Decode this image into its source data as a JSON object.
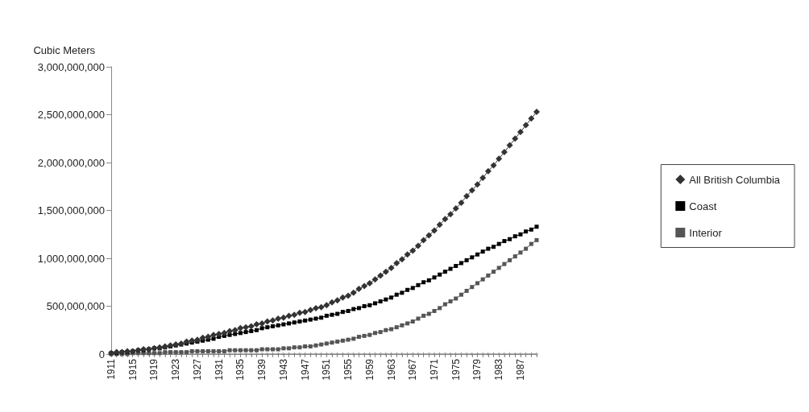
{
  "chart_data": {
    "type": "line",
    "ylabel": "Cubic Meters",
    "categories": [
      "1911",
      null,
      null,
      null,
      "1915",
      null,
      null,
      null,
      "1919",
      null,
      null,
      null,
      "1923",
      null,
      null,
      null,
      "1927",
      null,
      null,
      null,
      "1931",
      null,
      null,
      null,
      "1935",
      null,
      null,
      null,
      "1939",
      null,
      null,
      null,
      "1943",
      null,
      null,
      null,
      "1947",
      null,
      null,
      null,
      "1951",
      null,
      null,
      null,
      "1955",
      null,
      null,
      null,
      "1959",
      null,
      null,
      null,
      "1963",
      null,
      null,
      null,
      "1967",
      null,
      null,
      null,
      "1971",
      null,
      null,
      null,
      "1975",
      null,
      null,
      null,
      "1979",
      null,
      null,
      null,
      "1983",
      null,
      null,
      null,
      "1987",
      null,
      null,
      null
    ],
    "series": [
      {
        "name": "All British Columbia",
        "color": "#333333",
        "marker": "diamond",
        "values": [
          10000000.0,
          20000000.0,
          20000000.0,
          30000000.0,
          30000000.0,
          40000000.0,
          50000000.0,
          50000000.0,
          60000000.0,
          70000000.0,
          80000000.0,
          90000000.0,
          100000000.0,
          110000000.0,
          130000000.0,
          140000000.0,
          150000000.0,
          170000000.0,
          180000000.0,
          200000000.0,
          210000000.0,
          220000000.0,
          240000000.0,
          250000000.0,
          270000000.0,
          280000000.0,
          290000000.0,
          310000000.0,
          320000000.0,
          340000000.0,
          350000000.0,
          370000000.0,
          380000000.0,
          400000000.0,
          410000000.0,
          430000000.0,
          440000000.0,
          460000000.0,
          480000000.0,
          490000000.0,
          510000000.0,
          540000000.0,
          560000000.0,
          590000000.0,
          610000000.0,
          640000000.0,
          680000000.0,
          710000000.0,
          740000000.0,
          780000000.0,
          820000000.0,
          860000000.0,
          900000000.0,
          950000000.0,
          990000000.0,
          1040000000.0,
          1080000000.0,
          1130000000.0,
          1190000000.0,
          1240000000.0,
          1290000000.0,
          1350000000.0,
          1410000000.0,
          1460000000.0,
          1520000000.0,
          1580000000.0,
          1650000000.0,
          1710000000.0,
          1770000000.0,
          1840000000.0,
          1910000000.0,
          1970000000.0,
          2040000000.0,
          2110000000.0,
          2180000000.0,
          2250000000.0,
          2320000000.0,
          2390000000.0,
          2460000000.0,
          2530000000.0
        ]
      },
      {
        "name": "Coast",
        "color": "#000000",
        "marker": "square",
        "values": [
          10000000.0,
          10000000.0,
          20000000.0,
          20000000.0,
          30000000.0,
          40000000.0,
          40000000.0,
          50000000.0,
          60000000.0,
          60000000.0,
          70000000.0,
          80000000.0,
          90000000.0,
          100000000.0,
          110000000.0,
          120000000.0,
          130000000.0,
          140000000.0,
          150000000.0,
          160000000.0,
          180000000.0,
          190000000.0,
          200000000.0,
          210000000.0,
          220000000.0,
          230000000.0,
          240000000.0,
          250000000.0,
          270000000.0,
          280000000.0,
          290000000.0,
          300000000.0,
          310000000.0,
          320000000.0,
          330000000.0,
          340000000.0,
          350000000.0,
          360000000.0,
          370000000.0,
          380000000.0,
          400000000.0,
          410000000.0,
          420000000.0,
          440000000.0,
          450000000.0,
          470000000.0,
          480000000.0,
          500000000.0,
          510000000.0,
          530000000.0,
          550000000.0,
          570000000.0,
          590000000.0,
          620000000.0,
          640000000.0,
          670000000.0,
          690000000.0,
          720000000.0,
          750000000.0,
          770000000.0,
          800000000.0,
          830000000.0,
          860000000.0,
          890000000.0,
          920000000.0,
          950000000.0,
          980000000.0,
          1010000000.0,
          1040000000.0,
          1070000000.0,
          1100000000.0,
          1120000000.0,
          1150000000.0,
          1180000000.0,
          1200000000.0,
          1230000000.0,
          1250000000.0,
          1280000000.0,
          1300000000.0,
          1330000000.0
        ]
      },
      {
        "name": "Interior",
        "color": "#555555",
        "marker": "square",
        "values": [
          0,
          0,
          0,
          0,
          10000000.0,
          10000000.0,
          10000000.0,
          10000000.0,
          10000000.0,
          10000000.0,
          20000000.0,
          20000000.0,
          20000000.0,
          20000000.0,
          20000000.0,
          30000000.0,
          30000000.0,
          30000000.0,
          30000000.0,
          30000000.0,
          30000000.0,
          30000000.0,
          40000000.0,
          40000000.0,
          40000000.0,
          40000000.0,
          40000000.0,
          40000000.0,
          50000000.0,
          50000000.0,
          50000000.0,
          50000000.0,
          60000000.0,
          60000000.0,
          70000000.0,
          70000000.0,
          80000000.0,
          80000000.0,
          90000000.0,
          100000000.0,
          110000000.0,
          120000000.0,
          130000000.0,
          140000000.0,
          150000000.0,
          160000000.0,
          180000000.0,
          190000000.0,
          200000000.0,
          220000000.0,
          230000000.0,
          250000000.0,
          260000000.0,
          280000000.0,
          300000000.0,
          320000000.0,
          340000000.0,
          370000000.0,
          400000000.0,
          420000000.0,
          450000000.0,
          480000000.0,
          520000000.0,
          550000000.0,
          580000000.0,
          620000000.0,
          660000000.0,
          700000000.0,
          740000000.0,
          780000000.0,
          820000000.0,
          860000000.0,
          900000000.0,
          940000000.0,
          980000000.0,
          1020000000.0,
          1060000000.0,
          1100000000.0,
          1150000000.0,
          1190000000.0
        ]
      },
      {
        "color": "#777777",
        "marker": "cross",
        "values": [
          0,
          0,
          0,
          0,
          0,
          0,
          0,
          0,
          0,
          0,
          0,
          0,
          0,
          0,
          0,
          0,
          0,
          0,
          0,
          0,
          0,
          0,
          0,
          0,
          0,
          0,
          0,
          0,
          0,
          0,
          0,
          0,
          0,
          0,
          0,
          0,
          0,
          0,
          0,
          0,
          0,
          0,
          0,
          0,
          0,
          0,
          0,
          0,
          0,
          0,
          0,
          0,
          0,
          0,
          0,
          0,
          0,
          0,
          0,
          0,
          0,
          0,
          0,
          0,
          0,
          0,
          0,
          0,
          0,
          0,
          0,
          0,
          0,
          0,
          0,
          0,
          0,
          0,
          0,
          0
        ]
      }
    ],
    "ylim": [
      0,
      3000000000
    ],
    "yticks": [
      0,
      {
        "value": 500000000,
        "label": "500,000,000"
      },
      {
        "value": 1000000000,
        "label": "1,000,000,000"
      },
      {
        "value": 1500000000,
        "label": "1,500,000,000"
      },
      {
        "value": 2000000000,
        "label": "2,000,000,000"
      },
      {
        "value": 2500000000,
        "label": "2,500,000,000"
      },
      {
        "value": 3000000000,
        "label": "3,000,000,000"
      }
    ],
    "grid": false,
    "legend": "right"
  }
}
